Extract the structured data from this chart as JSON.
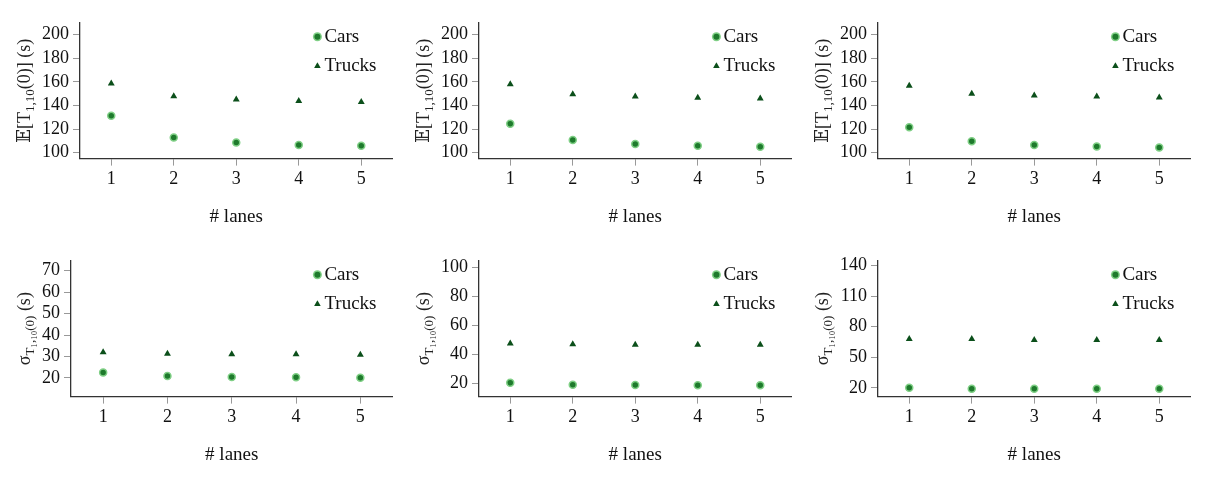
{
  "chart_data": [
    {
      "type": "scatter",
      "xlabel": "# lanes",
      "ylabel": "𝔼[T$_{1,10}$(0)] (s)",
      "x": [
        1,
        2,
        3,
        4,
        5
      ],
      "xlim": [
        0.5,
        5.5
      ],
      "xticks": [
        1,
        2,
        3,
        4,
        5
      ],
      "ylim": [
        95,
        210
      ],
      "yticks": [
        100,
        120,
        140,
        160,
        180,
        200
      ],
      "legend": "top right",
      "grid": false,
      "series": [
        {
          "name": "Cars",
          "color": "#1e7a2c",
          "marker": "circle",
          "values": [
            131.3,
            112.9,
            108.7,
            106.6,
            105.8
          ]
        },
        {
          "name": "Trucks",
          "color": "#0b4f1a",
          "marker": "triangle",
          "values": [
            158.5,
            147.9,
            145.0,
            143.7,
            142.9
          ]
        }
      ]
    },
    {
      "type": "scatter",
      "xlabel": "# lanes",
      "ylabel": "𝔼[T$_{1,10}$(0)] (s)",
      "x": [
        1,
        2,
        3,
        4,
        5
      ],
      "xlim": [
        0.5,
        5.5
      ],
      "xticks": [
        1,
        2,
        3,
        4,
        5
      ],
      "ylim": [
        95,
        210
      ],
      "yticks": [
        100,
        120,
        140,
        160,
        180,
        200
      ],
      "legend": "top right",
      "grid": false,
      "series": [
        {
          "name": "Cars",
          "color": "#1e7a2c",
          "marker": "circle",
          "values": [
            124.5,
            110.8,
            107.4,
            105.8,
            105.0
          ]
        },
        {
          "name": "Trucks",
          "color": "#0b4f1a",
          "marker": "triangle",
          "values": [
            157.9,
            149.5,
            147.6,
            146.6,
            145.8
          ]
        }
      ]
    },
    {
      "type": "scatter",
      "xlabel": "# lanes",
      "ylabel": "𝔼[T$_{1,10}$(0)] (s)",
      "x": [
        1,
        2,
        3,
        4,
        5
      ],
      "xlim": [
        0.5,
        5.5
      ],
      "xticks": [
        1,
        2,
        3,
        4,
        5
      ],
      "ylim": [
        95,
        210
      ],
      "yticks": [
        100,
        120,
        140,
        160,
        180,
        200
      ],
      "legend": "top right",
      "grid": false,
      "series": [
        {
          "name": "Cars",
          "color": "#1e7a2c",
          "marker": "circle",
          "values": [
            121.6,
            109.7,
            106.6,
            105.3,
            104.5
          ]
        },
        {
          "name": "Trucks",
          "color": "#0b4f1a",
          "marker": "triangle",
          "values": [
            156.6,
            150.0,
            148.4,
            147.6,
            146.8
          ]
        }
      ]
    },
    {
      "type": "scatter",
      "xlabel": "# lanes",
      "ylabel": "σ$_{T₁,₁₀(0)}$ (s)",
      "x": [
        1,
        2,
        3,
        4,
        5
      ],
      "xlim": [
        0.5,
        5.5
      ],
      "xticks": [
        1,
        2,
        3,
        4,
        5
      ],
      "ylim": [
        11.3,
        74.6
      ],
      "yticks": [
        20,
        30,
        40,
        50,
        60,
        70
      ],
      "legend": "top right",
      "grid": false,
      "series": [
        {
          "name": "Cars",
          "color": "#1e7a2c",
          "marker": "circle",
          "values": [
            22.5,
            20.9,
            20.4,
            20.3,
            20.1
          ]
        },
        {
          "name": "Trucks",
          "color": "#0b4f1a",
          "marker": "triangle",
          "values": [
            32.0,
            31.3,
            31.0,
            31.0,
            30.8
          ]
        }
      ]
    },
    {
      "type": "scatter",
      "xlabel": "# lanes",
      "ylabel": "σ$_{T₁,₁₀(0)}$ (s)",
      "x": [
        1,
        2,
        3,
        4,
        5
      ],
      "xlim": [
        0.5,
        5.5
      ],
      "xticks": [
        1,
        2,
        3,
        4,
        5
      ],
      "ylim": [
        10.9,
        104.7
      ],
      "yticks": [
        20,
        40,
        60,
        80,
        100
      ],
      "legend": "top right",
      "grid": false,
      "series": [
        {
          "name": "Cars",
          "color": "#1e7a2c",
          "marker": "circle",
          "values": [
            20.4,
            19.1,
            18.9,
            18.7,
            18.7
          ]
        },
        {
          "name": "Trucks",
          "color": "#0b4f1a",
          "marker": "triangle",
          "values": [
            47.6,
            47.0,
            46.7,
            46.7,
            46.7
          ]
        }
      ]
    },
    {
      "type": "scatter",
      "xlabel": "# lanes",
      "ylabel": "σ$_{T₁,₁₀(0)}$ (s)",
      "x": [
        1,
        2,
        3,
        4,
        5
      ],
      "xlim": [
        0.5,
        5.5
      ],
      "xticks": [
        1,
        2,
        3,
        4,
        5
      ],
      "ylim": [
        11.4,
        144.6
      ],
      "yticks": [
        20,
        50,
        80,
        110,
        140
      ],
      "legend": "top right",
      "grid": false,
      "series": [
        {
          "name": "Cars",
          "color": "#1e7a2c",
          "marker": "circle",
          "values": [
            20,
            19,
            19,
            19,
            19
          ]
        },
        {
          "name": "Trucks",
          "color": "#0b4f1a",
          "marker": "triangle",
          "values": [
            68,
            68,
            67,
            67,
            67
          ]
        }
      ]
    }
  ]
}
